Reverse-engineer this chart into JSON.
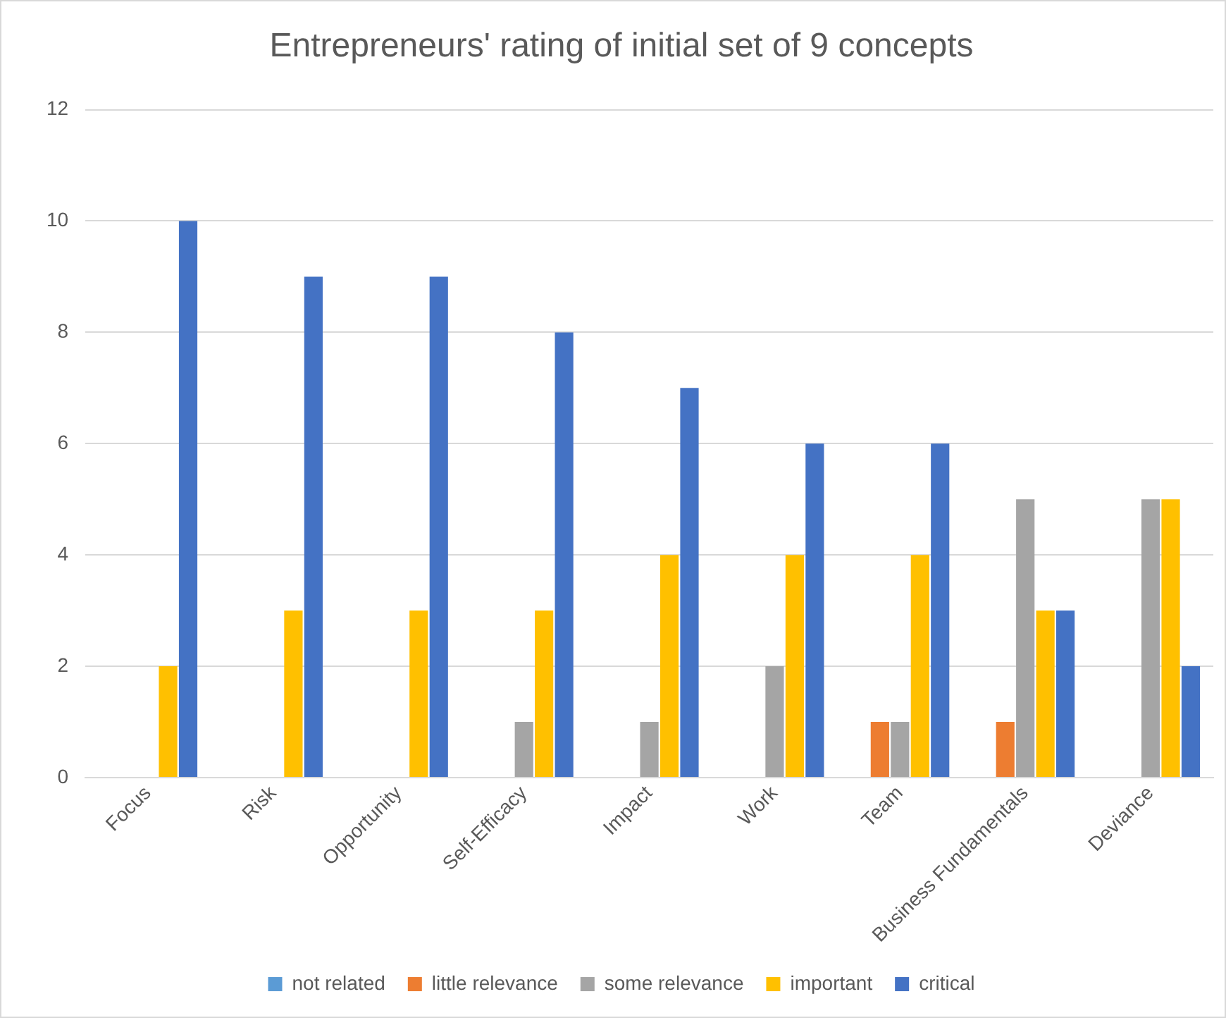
{
  "chart_data": {
    "type": "bar",
    "title": "Entrepreneurs' rating of initial set of 9 concepts",
    "categories": [
      "Focus",
      "Risk",
      "Opportunity",
      "Self-Efficacy",
      "Impact",
      "Work",
      "Team",
      "Business Fundamentals",
      "Deviance"
    ],
    "series": [
      {
        "name": "not related",
        "color": "#5b9bd5",
        "values": [
          0,
          0,
          0,
          0,
          0,
          0,
          0,
          0,
          0
        ]
      },
      {
        "name": "little relevance",
        "color": "#ed7d31",
        "values": [
          0,
          0,
          0,
          0,
          0,
          0,
          1,
          1,
          0
        ]
      },
      {
        "name": "some relevance",
        "color": "#a5a5a5",
        "values": [
          0,
          0,
          0,
          1,
          1,
          2,
          1,
          5,
          5
        ]
      },
      {
        "name": "important",
        "color": "#ffc000",
        "values": [
          2,
          3,
          3,
          3,
          4,
          4,
          4,
          3,
          5
        ]
      },
      {
        "name": "critical",
        "color": "#4472c4",
        "values": [
          10,
          9,
          9,
          8,
          7,
          6,
          6,
          3,
          2
        ]
      }
    ],
    "ylim": [
      0,
      12
    ],
    "yticks": [
      0,
      2,
      4,
      6,
      8,
      10,
      12
    ],
    "grid": "y",
    "legend": "bottom"
  }
}
